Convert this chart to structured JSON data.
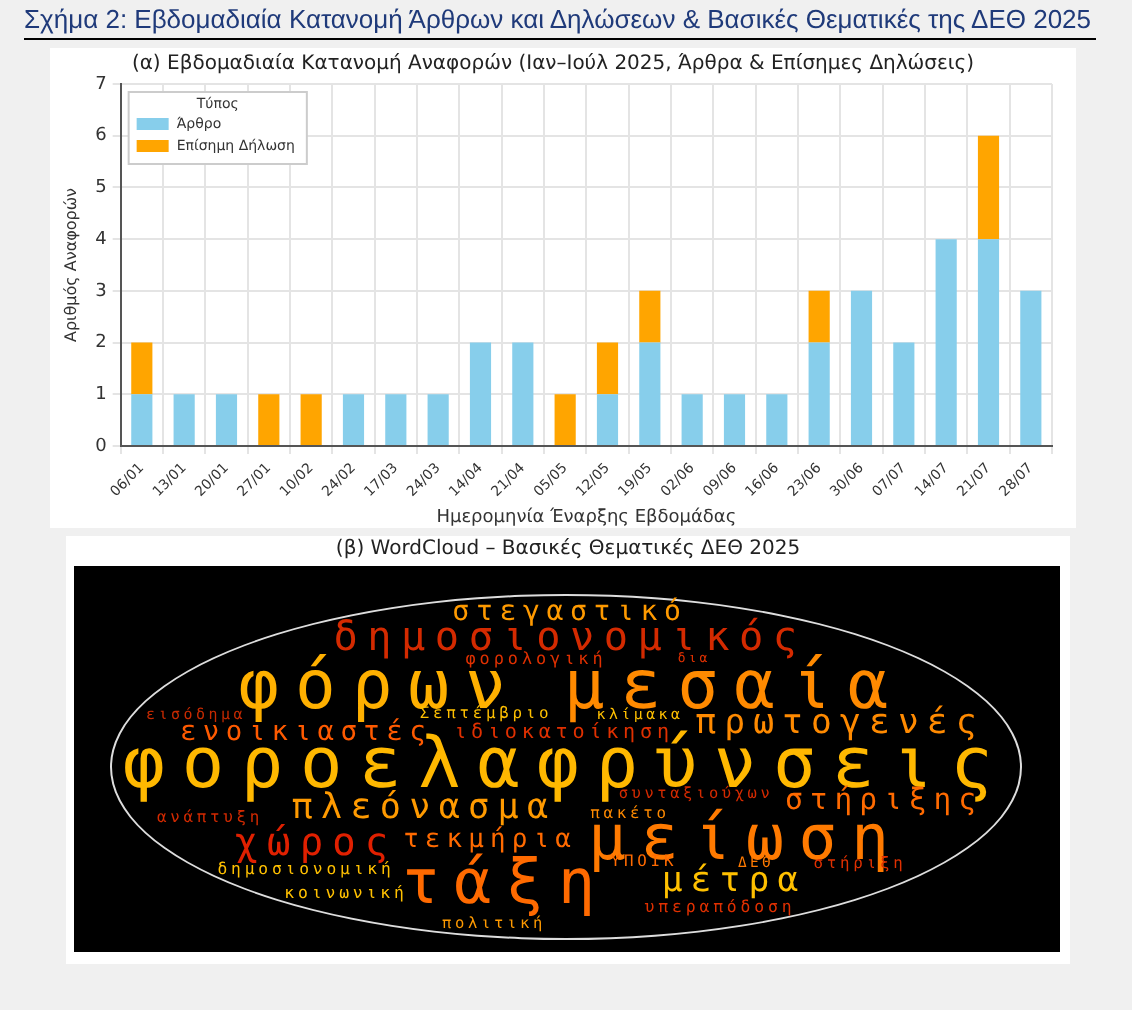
{
  "chart_data": [
    {
      "type": "bar",
      "title": "Σχήμα 2: Εβδομαδιαία Κατανομή Άρθρων και Δηλώσεων & Βασικές Θεματικές της ΔΕΘ 2025",
      "subtitle": "(α) Εβδομαδιαία Κατανομή Αναφορών (Ιαν–Ιούλ 2025, Άρθρα & Επίσημες Δηλώσεις)",
      "xlabel": "Ημερομηνία Έναρξης Εβδομάδας",
      "ylabel": "Αριθμός Αναφορών",
      "legend_title": "Τύπος",
      "categories": [
        "06/01",
        "13/01",
        "20/01",
        "27/01",
        "10/02",
        "24/02",
        "17/03",
        "24/03",
        "14/04",
        "21/04",
        "05/05",
        "12/05",
        "19/05",
        "02/06",
        "09/06",
        "16/06",
        "23/06",
        "30/06",
        "07/07",
        "14/07",
        "21/07",
        "28/07"
      ],
      "series": [
        {
          "name": "Άρθρο",
          "color": "#87ceeb",
          "values": [
            1,
            1,
            1,
            0,
            0,
            1,
            1,
            1,
            2,
            2,
            0,
            1,
            2,
            1,
            1,
            1,
            2,
            3,
            2,
            4,
            4,
            3
          ]
        },
        {
          "name": "Επίσημη Δήλωση",
          "color": "#ffa500",
          "values": [
            1,
            0,
            0,
            1,
            1,
            0,
            0,
            0,
            0,
            0,
            1,
            1,
            1,
            0,
            0,
            0,
            1,
            0,
            0,
            0,
            2,
            0
          ]
        }
      ],
      "stacked": true,
      "ylim": [
        0,
        7
      ],
      "yticks": [
        0,
        1,
        2,
        3,
        4,
        5,
        6,
        7
      ],
      "grid": true,
      "legend": "top left"
    },
    {
      "type": "other",
      "title": "(β) WordCloud – Βασικές Θεματικές ΔΕΘ 2025",
      "annotations": [
        "στεγαστικό",
        "δημοσιονομικός",
        "φορολογική",
        "δια",
        "φόρων",
        "μεσαία",
        "εισόδημα",
        "Σεπτέμβριο",
        "κλίμακα",
        "ενοικιαστές",
        "ιδιοκατοίκηση",
        "πρωτογενές",
        "φοροελαφρύνσεις",
        "συνταξιούχων",
        "στήριξης",
        "πλεόνασμα",
        "ανάπτυξη",
        "πακέτο",
        "μείωση",
        "χώρος",
        "τεκμήρια",
        "ΥΠΟΙΚ",
        "ΔΕΘ",
        "στήριξη",
        "δημοσιονομική",
        "τάξη",
        "μέτρα",
        "κοινωνική",
        "υπεραπόδοση",
        "πολιτική"
      ],
      "colors": [
        "#ff9a00",
        "#d42a00",
        "#e03000",
        "#e03000",
        "#ffb000",
        "#ff8a00",
        "#c82a00",
        "#ffc000",
        "#ffc000",
        "#ff5a00",
        "#e03000",
        "#ff8a00",
        "#ffb800",
        "#d42a00",
        "#ff6a00",
        "#ff9a00",
        "#d42a00",
        "#ff8a00",
        "#ff7a00",
        "#e02000",
        "#ff6a00",
        "#ff6a00",
        "#ff7a00",
        "#e03000",
        "#ffc000",
        "#ff6a00",
        "#ffc000",
        "#ffc000",
        "#e03000",
        "#ff9a00"
      ]
    }
  ]
}
